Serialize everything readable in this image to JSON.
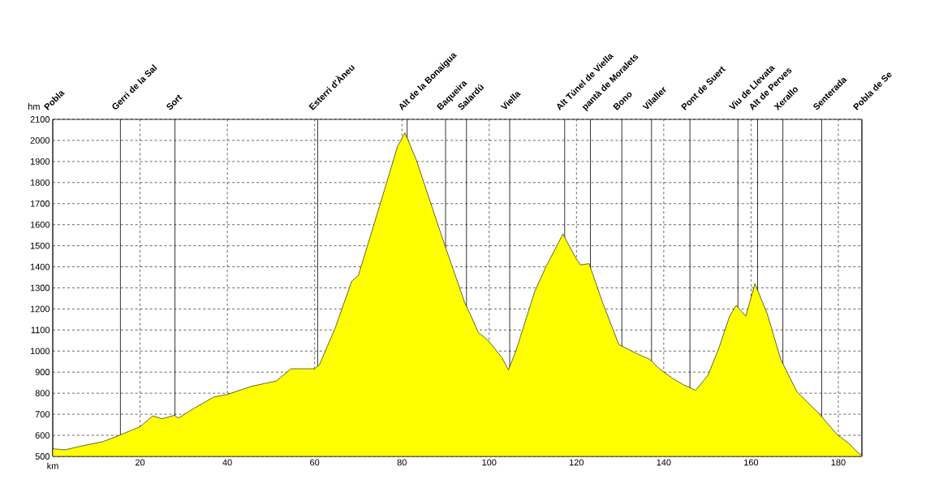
{
  "chart_data": {
    "type": "area",
    "xlabel": "km",
    "ylabel": "hm",
    "x": [
      0,
      2.8,
      6.5,
      11.5,
      15.5,
      20,
      22.9,
      25.1,
      27.9,
      28.8,
      32.5,
      36.9,
      40,
      45.6,
      51.2,
      54.6,
      58,
      60,
      61.1,
      64.8,
      68.5,
      70,
      73.4,
      76.5,
      79,
      80.7,
      83.3,
      87,
      90.1,
      94.4,
      95.6,
      97.5,
      99.8,
      103,
      104.4,
      106.1,
      110.4,
      112.9,
      116.9,
      119.7,
      120.9,
      122.9,
      126,
      129.7,
      134,
      136.8,
      139,
      142,
      144.6,
      147.3,
      150.1,
      152.6,
      155.1,
      156.6,
      158.8,
      160.9,
      163.7,
      166.8,
      170.5,
      175.5,
      179.8,
      182.3,
      184.7,
      185.4
    ],
    "values": [
      536,
      531,
      549,
      570,
      602,
      641,
      692,
      679,
      695,
      682,
      730,
      782,
      794,
      833,
      858,
      916,
      916,
      916,
      935,
      1114,
      1332,
      1358,
      1588,
      1799,
      1972,
      2036,
      1908,
      1678,
      1486,
      1230,
      1178,
      1089,
      1050,
      967,
      910,
      999,
      1281,
      1396,
      1556,
      1447,
      1409,
      1415,
      1230,
      1031,
      986,
      961,
      916,
      871,
      839,
      814,
      884,
      1012,
      1166,
      1217,
      1166,
      1320,
      1178,
      961,
      807,
      705,
      602,
      564,
      513,
      505
    ],
    "color": "#ffff00",
    "xlim": [
      0,
      185.4
    ],
    "ylim": [
      500,
      2100
    ],
    "xticks": [
      20,
      40,
      60,
      80,
      100,
      120,
      140,
      160,
      180
    ],
    "yticks": [
      500,
      600,
      700,
      800,
      900,
      1000,
      1100,
      1200,
      1300,
      1400,
      1500,
      1600,
      1700,
      1800,
      1900,
      2000,
      2100
    ],
    "grid": true,
    "ref_lines": [
      {
        "axis": "x",
        "value": 0,
        "label": "Pobla",
        "color": "#000000"
      },
      {
        "axis": "x",
        "value": 15.5,
        "label": "Gerri de la Sal",
        "color": "#000000"
      },
      {
        "axis": "x",
        "value": 28,
        "label": "Sort",
        "color": "#000000"
      },
      {
        "axis": "x",
        "value": 60.7,
        "label": "Esterri d'Àneu",
        "color": "#000000"
      },
      {
        "axis": "x",
        "value": 81.2,
        "label": "Alt de la Bonaigua",
        "color": "#000000"
      },
      {
        "axis": "x",
        "value": 90,
        "label": "Baqueira",
        "color": "#000000"
      },
      {
        "axis": "x",
        "value": 94.8,
        "label": "Salardú",
        "color": "#000000"
      },
      {
        "axis": "x",
        "value": 104.7,
        "label": "Viella",
        "color": "#000000"
      },
      {
        "axis": "x",
        "value": 117.3,
        "label": "Alt Túnel de Viella",
        "color": "#000000"
      },
      {
        "axis": "x",
        "value": 123.2,
        "label": "pantà de Moralets",
        "color": "#000000"
      },
      {
        "axis": "x",
        "value": 130.4,
        "label": "Bono",
        "color": "#000000"
      },
      {
        "axis": "x",
        "value": 137.2,
        "label": "Vilaller",
        "color": "#000000"
      },
      {
        "axis": "x",
        "value": 146,
        "label": "Pont de Suert",
        "color": "#000000"
      },
      {
        "axis": "x",
        "value": 157,
        "label": "Viu de Llevata",
        "color": "#000000"
      },
      {
        "axis": "x",
        "value": 161.5,
        "label": "Alt de Perves",
        "color": "#000000"
      },
      {
        "axis": "x",
        "value": 167.3,
        "label": "Xerallo",
        "color": "#000000"
      },
      {
        "axis": "x",
        "value": 176.2,
        "label": "Senterada",
        "color": "#000000"
      },
      {
        "axis": "x",
        "value": 185.4,
        "label": "Pobla de Se",
        "color": "#000000"
      }
    ]
  }
}
